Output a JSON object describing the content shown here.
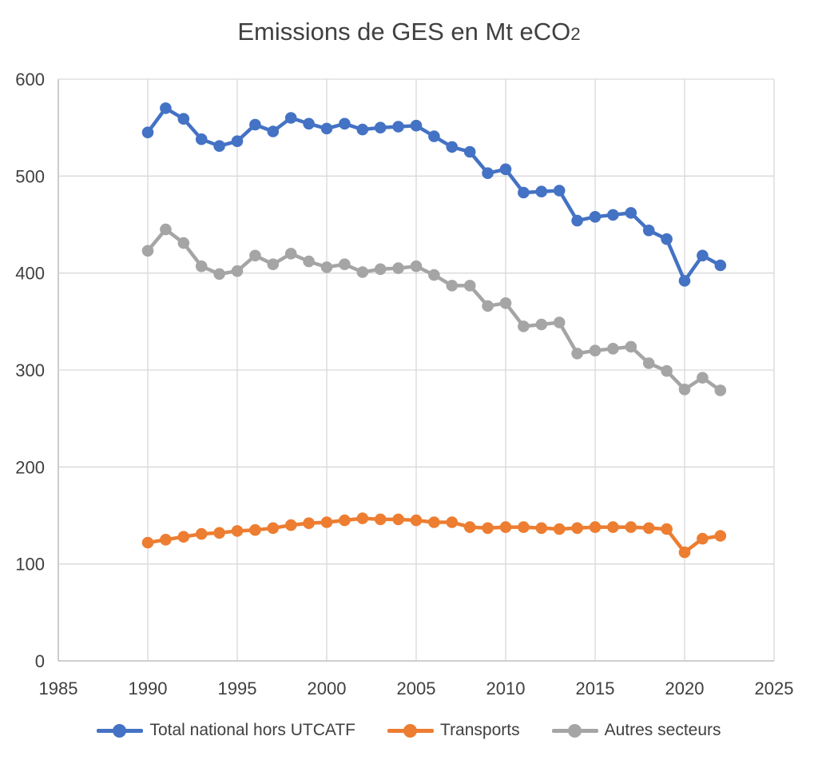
{
  "page": {
    "background": "#FFFFFF"
  },
  "title": "Emissions de GES en Mt eCO2",
  "title_parts": {
    "main": "Emissions de GES en Mt eCO",
    "sub": "2"
  },
  "chart_data": {
    "type": "line",
    "title": "Emissions de GES en Mt eCO2",
    "xlabel": "",
    "ylabel": "Mt eCO2",
    "x": [
      1990,
      1991,
      1992,
      1993,
      1994,
      1995,
      1996,
      1997,
      1998,
      1999,
      2000,
      2001,
      2002,
      2003,
      2004,
      2005,
      2006,
      2007,
      2008,
      2009,
      2010,
      2011,
      2012,
      2013,
      2014,
      2015,
      2016,
      2017,
      2018,
      2019,
      2020,
      2021,
      2022
    ],
    "series": [
      {
        "name": "Total national hors UTCATF",
        "color": "#4472C4",
        "values": [
          545,
          570,
          559,
          538,
          531,
          536,
          553,
          546,
          560,
          554,
          549,
          554,
          548,
          550,
          551,
          552,
          541,
          530,
          525,
          503,
          507,
          483,
          484,
          485,
          454,
          458,
          460,
          462,
          444,
          435,
          392,
          418,
          408
        ]
      },
      {
        "name": "Transports",
        "color": "#ED7D31",
        "values": [
          122,
          125,
          128,
          131,
          132,
          134,
          135,
          137,
          140,
          142,
          143,
          145,
          147,
          146,
          146,
          145,
          143,
          143,
          138,
          137,
          138,
          138,
          137,
          136,
          137,
          138,
          138,
          138,
          137,
          136,
          112,
          126,
          129
        ]
      },
      {
        "name": "Autres secteurs",
        "color": "#A5A5A5",
        "values": [
          423,
          445,
          431,
          407,
          399,
          402,
          418,
          409,
          420,
          412,
          406,
          409,
          401,
          404,
          405,
          407,
          398,
          387,
          387,
          366,
          369,
          345,
          347,
          349,
          317,
          320,
          322,
          324,
          307,
          299,
          280,
          292,
          279
        ]
      }
    ],
    "xlim": [
      1985,
      2025
    ],
    "ylim": [
      0,
      600
    ],
    "x_ticks": [
      1985,
      1990,
      1995,
      2000,
      2005,
      2010,
      2015,
      2020,
      2025
    ],
    "y_ticks": [
      0,
      100,
      200,
      300,
      400,
      500,
      600
    ],
    "grid": true,
    "legend_position": "bottom",
    "styles": {
      "gridline_color": "#D9D9D9",
      "axis_line_color": "#BFBFBF",
      "text_color": "#404040",
      "line_width": 4.5,
      "marker_radius": 7.3
    }
  }
}
